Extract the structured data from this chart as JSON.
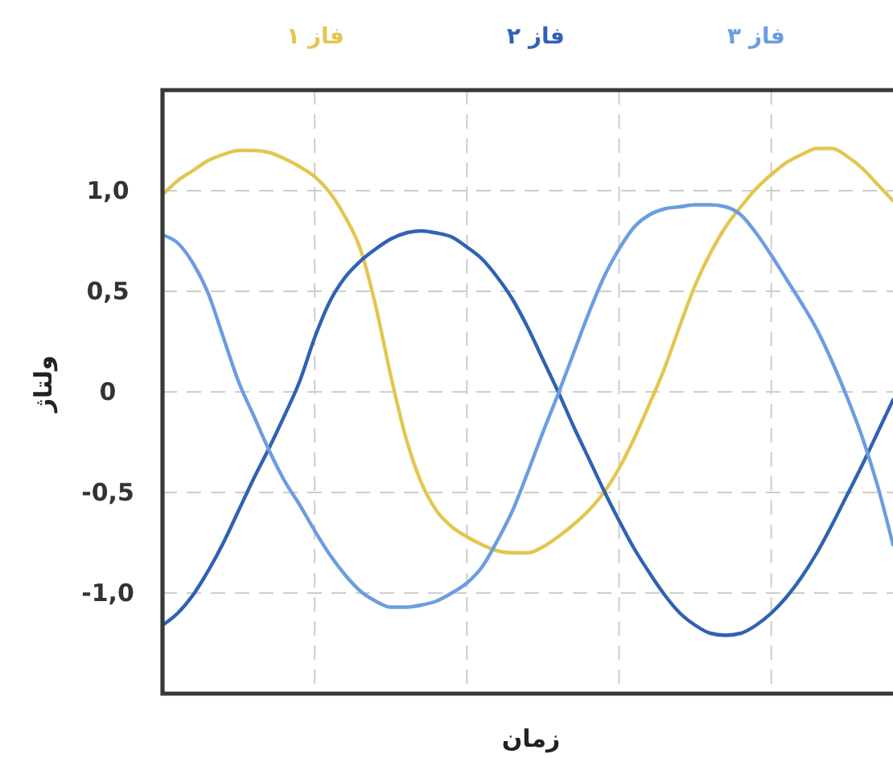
{
  "chart_data": {
    "type": "line",
    "xlabel": "زمان",
    "ylabel": "ولتاژ",
    "categories": [
      null,
      null,
      null,
      null,
      null,
      null,
      null,
      null,
      null,
      null,
      null,
      null,
      null,
      null,
      null,
      null,
      null,
      null,
      null,
      null,
      null,
      null,
      null,
      null,
      null,
      null,
      null,
      null,
      null,
      null,
      null,
      null,
      null,
      null,
      null,
      null,
      null,
      null,
      null,
      null,
      null,
      null,
      null,
      null,
      null,
      null,
      null,
      null,
      null
    ],
    "series": [
      {
        "name": "فاز ۱",
        "color": "#e3c64f",
        "values": [
          0.98,
          1.05,
          1.1,
          1.15,
          1.18,
          1.2,
          1.2,
          1.19,
          1.16,
          1.12,
          1.07,
          0.99,
          0.87,
          0.71,
          0.43,
          0.08,
          -0.23,
          -0.45,
          -0.59,
          -0.67,
          -0.72,
          -0.76,
          -0.79,
          -0.8,
          -0.8,
          -0.77,
          -0.72,
          -0.66,
          -0.59,
          -0.5,
          -0.38,
          -0.23,
          -0.06,
          0.12,
          0.33,
          0.53,
          0.69,
          0.82,
          0.92,
          1.01,
          1.08,
          1.14,
          1.18,
          1.21,
          1.21,
          1.17,
          1.11,
          1.03,
          0.95
        ]
      },
      {
        "name": "فاز ۲",
        "color": "#2f62b3",
        "values": [
          -1.16,
          -1.1,
          -1.01,
          -0.89,
          -0.75,
          -0.59,
          -0.43,
          -0.28,
          -0.12,
          0.05,
          0.27,
          0.45,
          0.57,
          0.65,
          0.71,
          0.76,
          0.79,
          0.8,
          0.79,
          0.77,
          0.72,
          0.66,
          0.57,
          0.46,
          0.32,
          0.16,
          0.0,
          -0.17,
          -0.33,
          -0.49,
          -0.64,
          -0.78,
          -0.9,
          -1.01,
          -1.1,
          -1.16,
          -1.2,
          -1.21,
          -1.2,
          -1.16,
          -1.1,
          -1.02,
          -0.92,
          -0.8,
          -0.66,
          -0.51,
          -0.36,
          -0.2,
          -0.04
        ]
      },
      {
        "name": "فاز ۳",
        "color": "#6b9de0",
        "values": [
          0.78,
          0.74,
          0.64,
          0.49,
          0.27,
          0.05,
          -0.12,
          -0.29,
          -0.44,
          -0.56,
          -0.69,
          -0.81,
          -0.91,
          -0.99,
          -1.04,
          -1.07,
          -1.07,
          -1.06,
          -1.04,
          -1.0,
          -0.95,
          -0.87,
          -0.74,
          -0.59,
          -0.4,
          -0.2,
          -0.01,
          0.19,
          0.39,
          0.57,
          0.71,
          0.82,
          0.88,
          0.91,
          0.92,
          0.93,
          0.93,
          0.92,
          0.88,
          0.79,
          0.68,
          0.56,
          0.44,
          0.31,
          0.15,
          -0.03,
          -0.23,
          -0.47,
          -0.76
        ]
      }
    ],
    "ylim": [
      -1.5,
      1.5
    ],
    "yticks": [
      {
        "value": -1,
        "label": "-1,0"
      },
      {
        "value": -0.5,
        "label": "-0,5"
      },
      0,
      {
        "value": 0.5,
        "label": "0,5"
      },
      {
        "value": 1,
        "label": "1,0"
      }
    ],
    "grid": true,
    "legend": "top"
  }
}
